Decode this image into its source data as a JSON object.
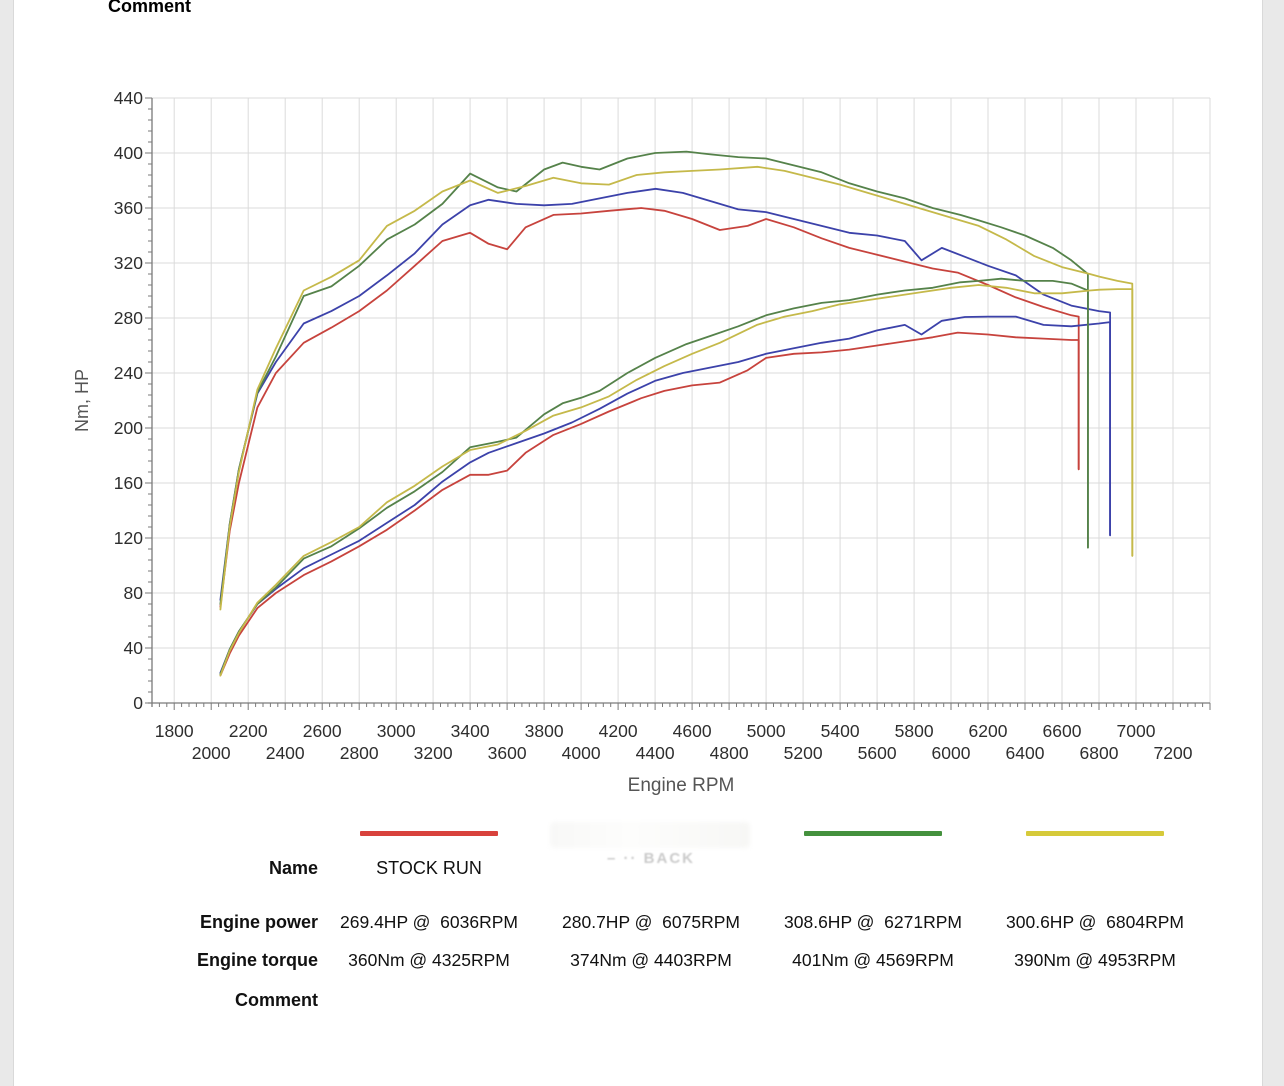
{
  "page": {
    "top_partial_row_label": "Comment"
  },
  "chart_data": {
    "type": "line",
    "title": "",
    "xlabel": "Engine RPM",
    "ylabel": "Nm, HP",
    "xlim": [
      1680,
      7400
    ],
    "ylim": [
      0,
      440
    ],
    "grid": true,
    "x_tick_step": 200,
    "x_minor_step": 40,
    "x_label_start": 1800,
    "x_label_end": 7200,
    "x_labels_staggered_two_rows": true,
    "y_tick_step": 40,
    "y_minor_step": 8,
    "legend_position": "bottom-table",
    "series": [
      {
        "name": "STOCK RUN",
        "color": "#c7433d",
        "peak_power_hp": 269.4,
        "peak_power_rpm": 6036,
        "peak_torque_nm": 360,
        "peak_torque_rpm": 4325,
        "rev_limit_rpm": 6690,
        "rpm": [
          2050,
          2100,
          2150,
          2250,
          2350,
          2500,
          2650,
          2800,
          2950,
          3100,
          3250,
          3400,
          3500,
          3600,
          3700,
          3850,
          4000,
          4150,
          4325,
          4450,
          4600,
          4750,
          4900,
          5000,
          5150,
          5300,
          5450,
          5600,
          5750,
          5900,
          6036,
          6200,
          6350,
          6500,
          6650,
          6690,
          6690
        ],
        "torque_nm": [
          70,
          125,
          160,
          215,
          240,
          262,
          273,
          285,
          300,
          318,
          336,
          342,
          334,
          330,
          346,
          355,
          356,
          358,
          360,
          358,
          352,
          344,
          347,
          352,
          346,
          338,
          331,
          326,
          321,
          316,
          313,
          304,
          295,
          288,
          282,
          281,
          170
        ],
        "power_hp": [
          20,
          36,
          49,
          69,
          80,
          93,
          103,
          114,
          126,
          140,
          155,
          166,
          166,
          169,
          182,
          195,
          203,
          212,
          221.7,
          227,
          231,
          233,
          242,
          251,
          254,
          255,
          257,
          260,
          263,
          266,
          269.4,
          268,
          266,
          265,
          264,
          264,
          170
        ]
      },
      {
        "name": "",
        "color": "#3c42aa",
        "peak_power_hp": 280.7,
        "peak_power_rpm": 6075,
        "peak_torque_nm": 374,
        "peak_torque_rpm": 4403,
        "rev_limit_rpm": 6860,
        "rpm": [
          2050,
          2100,
          2150,
          2250,
          2350,
          2500,
          2650,
          2800,
          2950,
          3100,
          3250,
          3400,
          3500,
          3650,
          3800,
          3950,
          4100,
          4250,
          4403,
          4550,
          4700,
          4850,
          5000,
          5150,
          5300,
          5450,
          5600,
          5750,
          5840,
          5950,
          6075,
          6200,
          6350,
          6500,
          6650,
          6800,
          6860,
          6860
        ],
        "torque_nm": [
          75,
          130,
          170,
          225,
          248,
          276,
          285,
          296,
          311,
          327,
          348,
          362,
          366,
          363,
          362,
          363,
          367,
          371,
          374,
          371,
          365,
          359,
          357,
          352,
          347,
          342,
          340,
          336,
          322,
          331,
          324.5,
          318,
          311,
          297,
          289,
          285,
          284,
          122
        ],
        "power_hp": [
          22,
          39,
          52,
          72,
          83,
          98,
          108,
          118,
          131,
          144,
          161,
          175,
          182,
          189,
          196,
          204,
          214,
          225,
          234.5,
          240,
          244,
          248,
          254,
          258,
          262,
          265,
          271,
          275,
          268,
          278,
          280.7,
          281,
          281,
          275,
          274,
          276,
          277,
          122
        ]
      },
      {
        "name": "",
        "color": "#55824a",
        "peak_power_hp": 308.6,
        "peak_power_rpm": 6271,
        "peak_torque_nm": 401,
        "peak_torque_rpm": 4569,
        "rev_limit_rpm": 6740,
        "rpm": [
          2050,
          2100,
          2150,
          2250,
          2350,
          2500,
          2650,
          2800,
          2950,
          3100,
          3250,
          3400,
          3550,
          3650,
          3800,
          3900,
          4000,
          4100,
          4250,
          4400,
          4569,
          4700,
          4850,
          5000,
          5150,
          5300,
          5450,
          5600,
          5750,
          5900,
          6050,
          6150,
          6271,
          6400,
          6550,
          6650,
          6740,
          6740
        ],
        "torque_nm": [
          72,
          130,
          170,
          226,
          252,
          296,
          303,
          318,
          337,
          348,
          363,
          385,
          375,
          372,
          388,
          393,
          390,
          388,
          396,
          400,
          401,
          399,
          397,
          396,
          391,
          386,
          378,
          372,
          367,
          360,
          355,
          351,
          346,
          340,
          331,
          322,
          312,
          113
        ],
        "power_hp": [
          21,
          39,
          52,
          72,
          84,
          105,
          114,
          127,
          142,
          154,
          168,
          186,
          190,
          193,
          210,
          218,
          222,
          227,
          240,
          251,
          261,
          267,
          274,
          282,
          287,
          291,
          293,
          297,
          300,
          302,
          306,
          307,
          308.6,
          307,
          307,
          305,
          300,
          113
        ]
      },
      {
        "name": "",
        "color": "#c5b94a",
        "peak_power_hp": 300.6,
        "peak_power_rpm": 6804,
        "peak_torque_nm": 390,
        "peak_torque_rpm": 4953,
        "rev_limit_rpm": 6980,
        "rpm": [
          2050,
          2100,
          2150,
          2250,
          2350,
          2500,
          2650,
          2800,
          2950,
          3100,
          3250,
          3400,
          3550,
          3700,
          3850,
          4000,
          4150,
          4300,
          4450,
          4600,
          4750,
          4953,
          5100,
          5250,
          5400,
          5550,
          5700,
          5850,
          6000,
          6150,
          6300,
          6450,
          6600,
          6750,
          6804,
          6900,
          6980,
          6980
        ],
        "torque_nm": [
          68,
          128,
          168,
          228,
          258,
          300,
          310,
          322,
          347,
          358,
          372,
          380,
          371,
          376,
          382,
          378,
          377,
          384,
          386,
          387,
          388,
          390,
          387,
          382,
          377,
          371,
          365,
          359,
          353,
          347,
          337,
          325,
          317,
          312,
          310,
          307,
          305,
          107
        ],
        "power_hp": [
          20,
          38,
          51,
          73,
          86,
          107,
          117,
          128,
          146,
          158,
          172,
          184,
          188,
          198,
          209,
          215,
          223,
          235,
          245,
          254,
          262,
          275.1,
          281,
          285,
          290,
          293,
          296,
          299,
          302,
          304,
          302,
          298,
          298,
          300,
          300.6,
          301,
          301,
          107
        ]
      }
    ]
  },
  "legend_table": {
    "row_labels": {
      "name": "Name",
      "power": "Engine power",
      "torque": "Engine torque",
      "comment": "Comment"
    },
    "entries": [
      {
        "swatch_color": "#d8423c",
        "name": "STOCK RUN",
        "power": "269.4HP @  6036RPM",
        "torque": "360Nm @ 4325RPM",
        "comment": ""
      },
      {
        "swatch_color": "#f1f1ee",
        "name": "",
        "name_redacted": true,
        "ghost_text": "– ·· BACK",
        "power": "280.7HP @  6075RPM",
        "torque": "374Nm @ 4403RPM",
        "comment": ""
      },
      {
        "swatch_color": "#44913d",
        "name": "",
        "power": "308.6HP @  6271RPM",
        "torque": "401Nm @ 4569RPM",
        "comment": ""
      },
      {
        "swatch_color": "#d6ca3a",
        "name": "",
        "power": "300.6HP @  6804RPM",
        "torque": "390Nm @ 4953RPM",
        "comment": ""
      }
    ]
  }
}
